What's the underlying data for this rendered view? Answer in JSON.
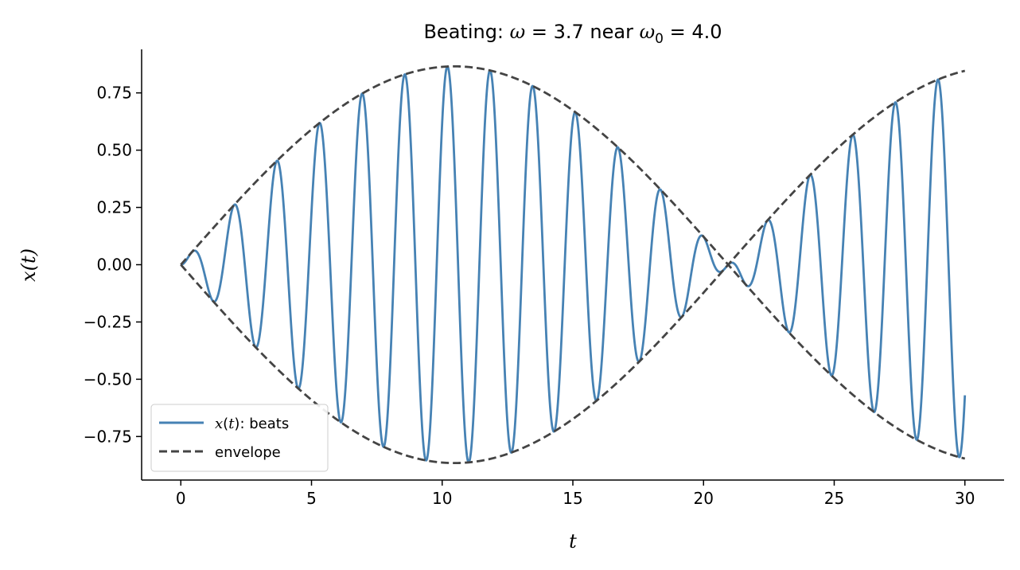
{
  "chart_data": {
    "type": "line",
    "title": "Beating: ω = 3.7 near ω₀ = 4.0",
    "xlabel": "t",
    "ylabel": "x(t)",
    "xlim": [
      -1.5,
      31.5
    ],
    "ylim": [
      -0.94,
      0.94
    ],
    "xticks": [
      0,
      5,
      10,
      15,
      20,
      25,
      30
    ],
    "xtick_labels": [
      "0",
      "5",
      "10",
      "15",
      "20",
      "25",
      "30"
    ],
    "yticks": [
      -0.75,
      -0.5,
      -0.25,
      0,
      0.25,
      0.5,
      0.75
    ],
    "ytick_labels": [
      "−0.75",
      "−0.50",
      "−0.25",
      "0.00",
      "0.25",
      "0.50",
      "0.75"
    ],
    "grid": false,
    "legend_position": "lower-left",
    "omega": 3.7,
    "omega0": 4.0,
    "amplitude": 0.8658,
    "t_range": [
      0,
      30
    ],
    "series": [
      {
        "name": "x(t): beats",
        "expression": "0.8658·sin(0.15·t)·sin(3.85·t)",
        "color": "#4682b4",
        "style": "solid"
      },
      {
        "name": "envelope",
        "expression": "±0.8658·sin(0.15·t)",
        "color": "#444444",
        "style": "dashed"
      }
    ]
  }
}
